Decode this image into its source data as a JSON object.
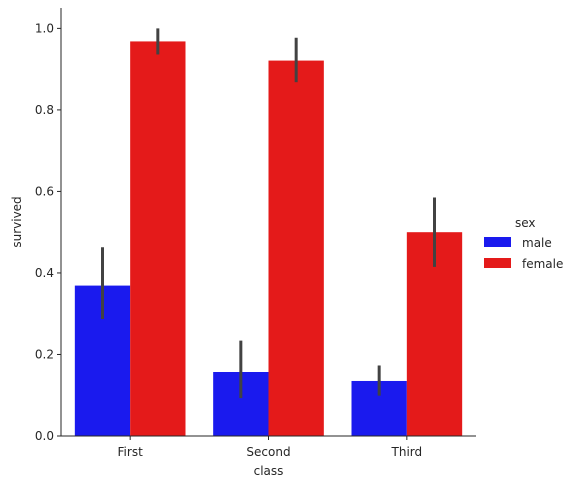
{
  "chart_data": {
    "type": "bar",
    "xlabel": "class",
    "ylabel": "survived",
    "categories": [
      "First",
      "Second",
      "Third"
    ],
    "ylim": [
      0,
      1.05
    ],
    "yticks": [
      "0.0",
      "0.2",
      "0.4",
      "0.6",
      "0.8",
      "1.0"
    ],
    "grid": false,
    "legend": {
      "title": "sex",
      "placement": "right"
    },
    "series": [
      {
        "name": "male",
        "color": "#1a1aee",
        "values": [
          0.369,
          0.157,
          0.135
        ],
        "error_low": [
          0.287,
          0.093,
          0.099
        ],
        "error_high": [
          0.463,
          0.234,
          0.173
        ]
      },
      {
        "name": "female",
        "color": "#e41a1a",
        "values": [
          0.968,
          0.921,
          0.5
        ],
        "error_low": [
          0.936,
          0.868,
          0.415
        ],
        "error_high": [
          1.0,
          0.977,
          0.585
        ]
      }
    ]
  }
}
